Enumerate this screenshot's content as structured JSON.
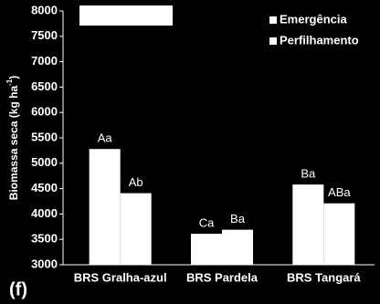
{
  "chart_data": {
    "type": "bar",
    "y_label": "Biomassa seca (kg ha",
    "y_label_sup": "-1",
    "y_label_end": ")",
    "panel_label": "(f)",
    "categories": [
      "BRS Gralha-azul",
      "BRS Pardela",
      "BRS Tangará"
    ],
    "series": [
      {
        "name": "Emergência",
        "color": "#ffffff",
        "values": [
          5280,
          3610,
          4580
        ],
        "letters": [
          "Aa",
          "Ca",
          "Ba"
        ]
      },
      {
        "name": "Perfilhamento",
        "color": "#ffffff",
        "values": [
          4410,
          3690,
          4210
        ],
        "letters": [
          "Ab",
          "Ba",
          "ABa"
        ]
      }
    ],
    "ylim": [
      3000,
      8000
    ],
    "yticks": [
      3000,
      3500,
      4000,
      4500,
      5000,
      5500,
      6000,
      6500,
      7000,
      7500,
      8000
    ]
  }
}
